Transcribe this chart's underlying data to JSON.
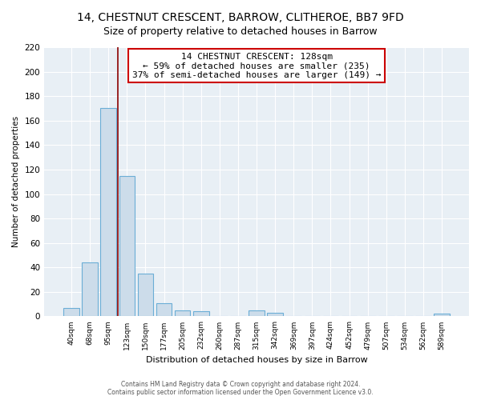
{
  "title": "14, CHESTNUT CRESCENT, BARROW, CLITHEROE, BB7 9FD",
  "subtitle": "Size of property relative to detached houses in Barrow",
  "xlabel": "Distribution of detached houses by size in Barrow",
  "ylabel": "Number of detached properties",
  "bar_labels": [
    "40sqm",
    "68sqm",
    "95sqm",
    "123sqm",
    "150sqm",
    "177sqm",
    "205sqm",
    "232sqm",
    "260sqm",
    "287sqm",
    "315sqm",
    "342sqm",
    "369sqm",
    "397sqm",
    "424sqm",
    "452sqm",
    "479sqm",
    "507sqm",
    "534sqm",
    "562sqm",
    "589sqm"
  ],
  "bar_values": [
    7,
    44,
    170,
    115,
    35,
    11,
    5,
    4,
    0,
    0,
    5,
    3,
    0,
    0,
    0,
    0,
    0,
    0,
    0,
    0,
    2
  ],
  "bar_color": "#ccdcea",
  "bar_edge_color": "#6baed6",
  "vline_color": "#8b0000",
  "annotation_line1": "14 CHESTNUT CRESCENT: 128sqm",
  "annotation_line2": "← 59% of detached houses are smaller (235)",
  "annotation_line3": "37% of semi-detached houses are larger (149) →",
  "annotation_box_edge_color": "#cc0000",
  "ylim": [
    0,
    220
  ],
  "yticks": [
    0,
    20,
    40,
    60,
    80,
    100,
    120,
    140,
    160,
    180,
    200,
    220
  ],
  "footer1": "Contains HM Land Registry data © Crown copyright and database right 2024.",
  "footer2": "Contains public sector information licensed under the Open Government Licence v3.0.",
  "bg_color": "#e8eff5",
  "title_fontsize": 10,
  "subtitle_fontsize": 9
}
